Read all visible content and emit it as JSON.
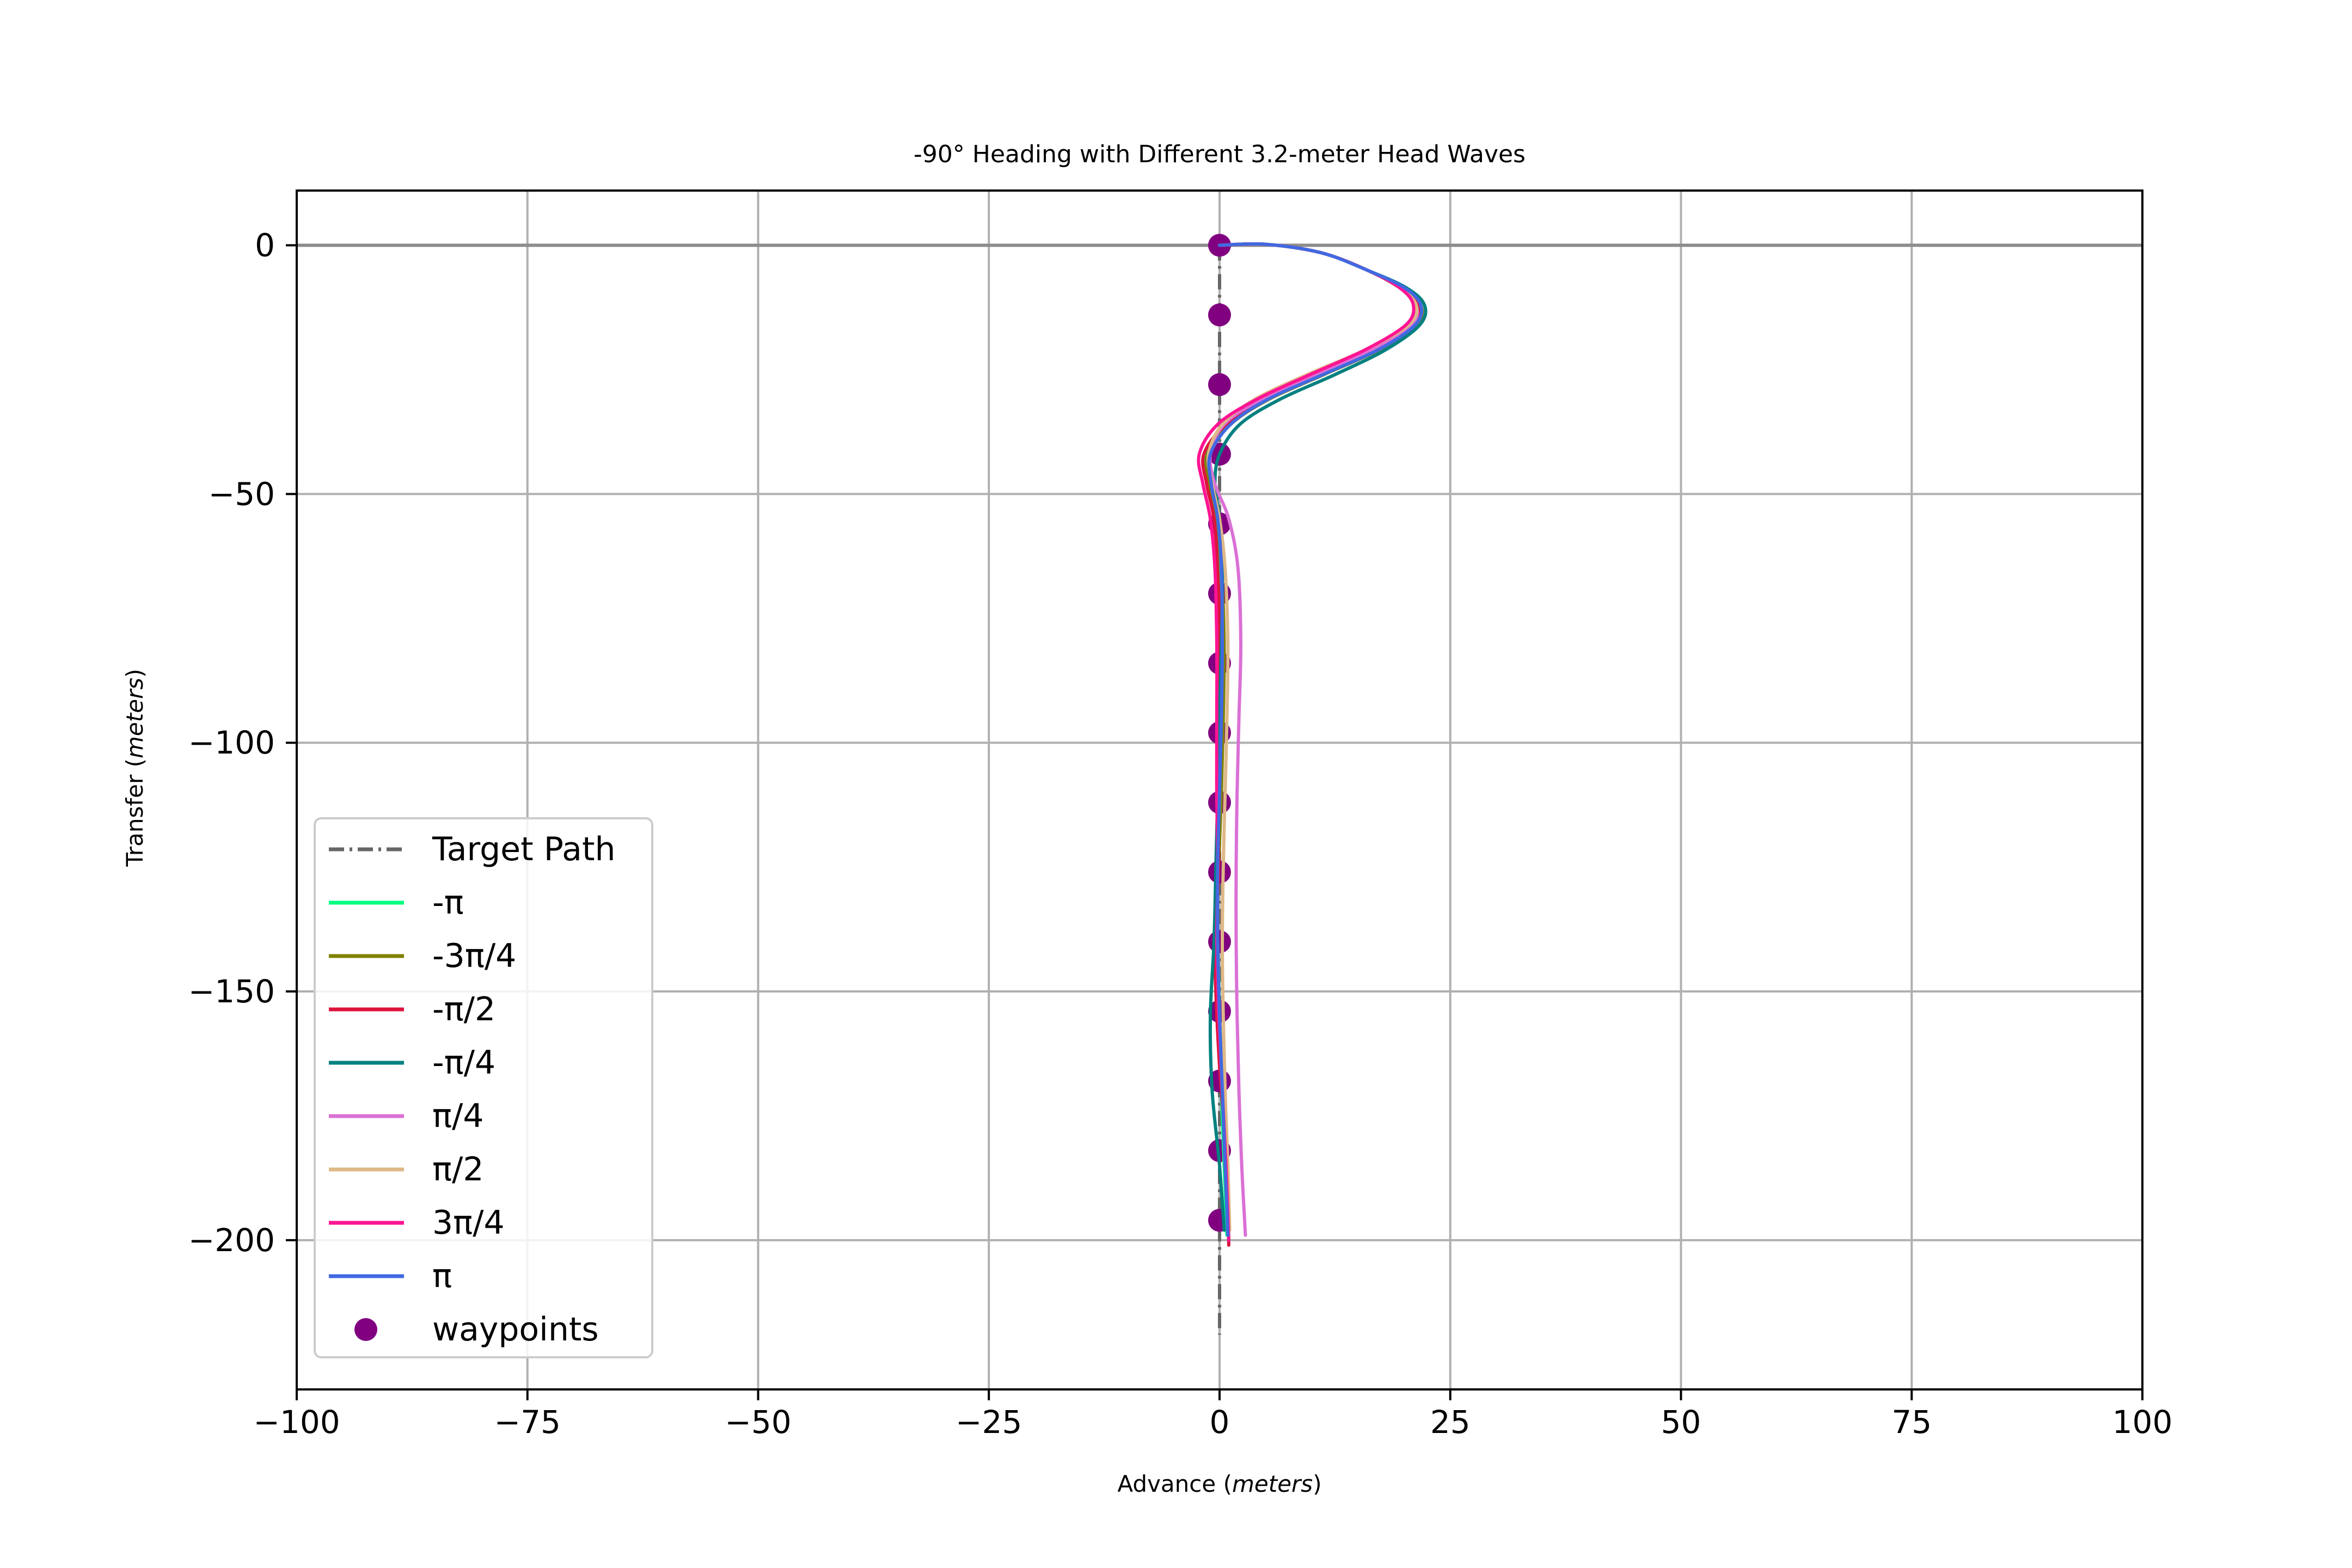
{
  "chart_data": {
    "type": "line",
    "title": "-90° Heading with Different 3.2-meter Head Waves",
    "xlabel": {
      "text": "Advance",
      "unit": "meters"
    },
    "ylabel": {
      "text": "Transfer",
      "unit": "meters"
    },
    "xlim": [
      -100,
      100
    ],
    "ylim": [
      -230,
      11
    ],
    "xticks": [
      -100,
      -75,
      -50,
      -25,
      0,
      25,
      50,
      75,
      100
    ],
    "xtick_labels": [
      "−100",
      "−75",
      "−50",
      "−25",
      "0",
      "25",
      "50",
      "75",
      "100"
    ],
    "yticks": [
      0,
      -50,
      -100,
      -150,
      -200
    ],
    "ytick_labels": [
      "0",
      "−50",
      "−100",
      "−150",
      "−200"
    ],
    "grid": true,
    "legend_position": "lower-left",
    "reference_lines": [
      {
        "y": 0,
        "color": "#8c8c8c"
      }
    ],
    "target_path": {
      "name": "Target Path",
      "color": "#666666",
      "x": [
        0,
        0
      ],
      "y": [
        0,
        -219
      ]
    },
    "waypoints": {
      "name": "waypoints",
      "color": "#800080",
      "x": [
        0,
        0,
        0,
        0,
        0,
        0,
        0,
        0,
        0,
        0,
        0,
        0,
        0,
        0,
        0
      ],
      "y": [
        0,
        -14,
        -28,
        -42,
        -56,
        -70,
        -84,
        -98,
        -112,
        -126,
        -140,
        -154,
        -168,
        -182,
        -196
      ]
    },
    "series": [
      {
        "name": "-π",
        "color": "#00ff7f",
        "x": [
          0,
          5,
          11,
          16,
          19.5,
          21.5,
          21,
          17,
          11,
          5,
          1,
          -1.5,
          -1.3,
          -0.5,
          0,
          0.3,
          0.2,
          0,
          -0.3,
          -0.2,
          0,
          0.2,
          0.5,
          0.8
        ],
        "y": [
          0,
          0.2,
          -1.5,
          -5,
          -8.5,
          -12,
          -16,
          -21,
          -26,
          -31,
          -36,
          -42,
          -48,
          -55,
          -65,
          -80,
          -95,
          -110,
          -125,
          -140,
          -155,
          -170,
          -185,
          -199
        ]
      },
      {
        "name": "-3π/4",
        "color": "#808000",
        "x": [
          0,
          5,
          11,
          16,
          19.5,
          21.8,
          21.3,
          17.3,
          11.3,
          5.3,
          1.2,
          -1.3,
          -1.1,
          -0.3,
          0.2,
          0.5,
          0.4,
          0.2,
          -0.1,
          -0.3,
          0,
          0.3,
          0.6,
          1
        ],
        "y": [
          0,
          0.2,
          -1.5,
          -5,
          -8.5,
          -12,
          -16,
          -21,
          -26,
          -31,
          -36,
          -42,
          -48,
          -55,
          -65,
          -80,
          -95,
          -110,
          -125,
          -140,
          -155,
          -170,
          -185,
          -200
        ]
      },
      {
        "name": "-π/2",
        "color": "#dc143c",
        "x": [
          0,
          5,
          11,
          16,
          19.5,
          21.5,
          20.8,
          16.7,
          10.7,
          4.7,
          0.7,
          -1.7,
          -1.4,
          -0.6,
          -0.2,
          0,
          -0.2,
          -0.3,
          -0.1,
          -0.5,
          -0.4,
          0,
          0.8,
          1
        ],
        "y": [
          0,
          0.2,
          -1.5,
          -5,
          -8.5,
          -12,
          -16,
          -21,
          -26,
          -31,
          -36,
          -42,
          -48,
          -55,
          -65,
          -80,
          -95,
          -110,
          -125,
          -140,
          -150,
          -165,
          -185,
          -201
        ]
      },
      {
        "name": "-π/4",
        "color": "#008080",
        "x": [
          0,
          5,
          11,
          16,
          20.2,
          22.2,
          21.7,
          18,
          12.5,
          6.5,
          2.2,
          0,
          -0.5,
          0,
          0.3,
          0.2,
          0,
          -0.2,
          -0.4,
          -0.6,
          -1,
          -0.8,
          0,
          0.5
        ],
        "y": [
          0,
          0.2,
          -1.5,
          -5,
          -8.5,
          -12,
          -16,
          -21,
          -26,
          -31,
          -36,
          -42,
          -48,
          -55,
          -65,
          -80,
          -95,
          -110,
          -125,
          -140,
          -155,
          -170,
          -185,
          -198
        ]
      },
      {
        "name": "π/4",
        "color": "#da70d6",
        "x": [
          0,
          5,
          11,
          16,
          19.5,
          21.3,
          20.8,
          16.5,
          10.5,
          4.5,
          0.5,
          -1,
          -0.5,
          1,
          2,
          2.3,
          2.1,
          1.9,
          1.8,
          1.8,
          1.9,
          2.1,
          2.4,
          2.8
        ],
        "y": [
          0,
          0.2,
          -1.5,
          -5,
          -8.5,
          -12,
          -16,
          -21,
          -26,
          -31,
          -36,
          -42,
          -48,
          -55,
          -65,
          -80,
          -95,
          -110,
          -125,
          -140,
          -155,
          -170,
          -185,
          -199
        ]
      },
      {
        "name": "π/2",
        "color": "#deb887",
        "x": [
          0,
          5,
          11,
          16,
          19.5,
          21.3,
          20.5,
          15.8,
          9.5,
          3.8,
          0.3,
          -1.2,
          -0.8,
          0,
          0.6,
          0.9,
          0.8,
          0.6,
          0.4,
          0.3,
          0.4,
          0.6,
          0.9,
          1.1
        ],
        "y": [
          0,
          0.2,
          -1.5,
          -5,
          -8.5,
          -12,
          -16,
          -21,
          -26,
          -31,
          -36,
          -42,
          -48,
          -55,
          -65,
          -80,
          -95,
          -110,
          -125,
          -140,
          -155,
          -170,
          -185,
          -198
        ]
      },
      {
        "name": "3π/4",
        "color": "#ff1493",
        "x": [
          0,
          5,
          11,
          16,
          19.5,
          21,
          20.2,
          15.8,
          9.8,
          4,
          -0.2,
          -2.2,
          -1.8,
          -1,
          -0.5,
          -0.3,
          -0.3,
          -0.3,
          -0.2,
          -0.3,
          -0.1,
          0.3,
          0.7,
          1
        ],
        "y": [
          0,
          0.2,
          -1.5,
          -5,
          -8.5,
          -12,
          -16,
          -21,
          -26,
          -31,
          -36,
          -42,
          -48,
          -55,
          -65,
          -80,
          -95,
          -110,
          -125,
          -140,
          -155,
          -170,
          -185,
          -200
        ]
      },
      {
        "name": "π",
        "color": "#4169e1",
        "x": [
          0,
          5,
          11,
          16,
          20,
          21.8,
          21.2,
          17.2,
          11.2,
          5.2,
          1.2,
          -1,
          -0.9,
          -0.2,
          0.2,
          0.3,
          0.2,
          0,
          -0.2,
          -0.2,
          0,
          0.3,
          0.6,
          0.9
        ],
        "y": [
          0,
          0.2,
          -1.5,
          -5,
          -8.5,
          -12,
          -16,
          -21,
          -26,
          -31,
          -36,
          -42,
          -48,
          -55,
          -65,
          -80,
          -95,
          -110,
          -125,
          -140,
          -155,
          -170,
          -185,
          -199
        ]
      }
    ]
  }
}
